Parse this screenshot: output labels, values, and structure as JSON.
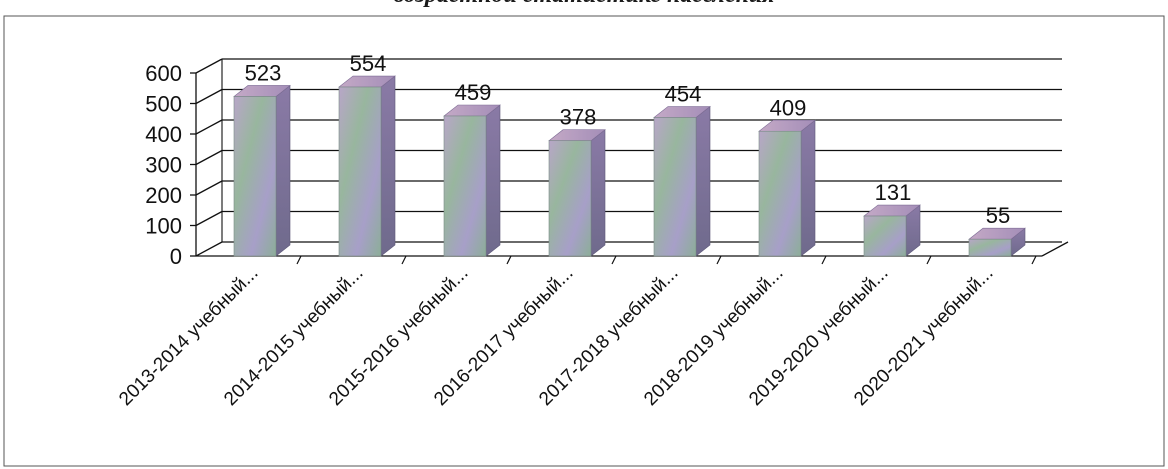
{
  "chart_data": {
    "type": "bar",
    "title": "возрастной статистике населения",
    "xlabel": "",
    "ylabel": "",
    "ylim": [
      0,
      600
    ],
    "yticks": [
      "0",
      "100",
      "200",
      "300",
      "400",
      "500",
      "600"
    ],
    "grid": true,
    "legend": "none",
    "style": "3d-column",
    "categories": [
      "2013-2014 учебный...",
      "2014-2015 учебный...",
      "2015-2016 учебный...",
      "2016-2017 учебный...",
      "2017-2018 учебный...",
      "2018-2019 учебный...",
      "2019-2020 учебный...",
      "2020-2021 учебный..."
    ],
    "values": [
      523,
      554,
      459,
      378,
      454,
      409,
      131,
      55
    ],
    "data_labels": [
      "523",
      "554",
      "459",
      "378",
      "454",
      "409",
      "131",
      "55"
    ]
  },
  "colors": {
    "bar_front": "#93b49a",
    "bar_front_accent": "#b09fc4",
    "bar_side": "#7a6d94",
    "bar_top": "#b79fbf",
    "grid": "#111111",
    "text": "#111111"
  }
}
